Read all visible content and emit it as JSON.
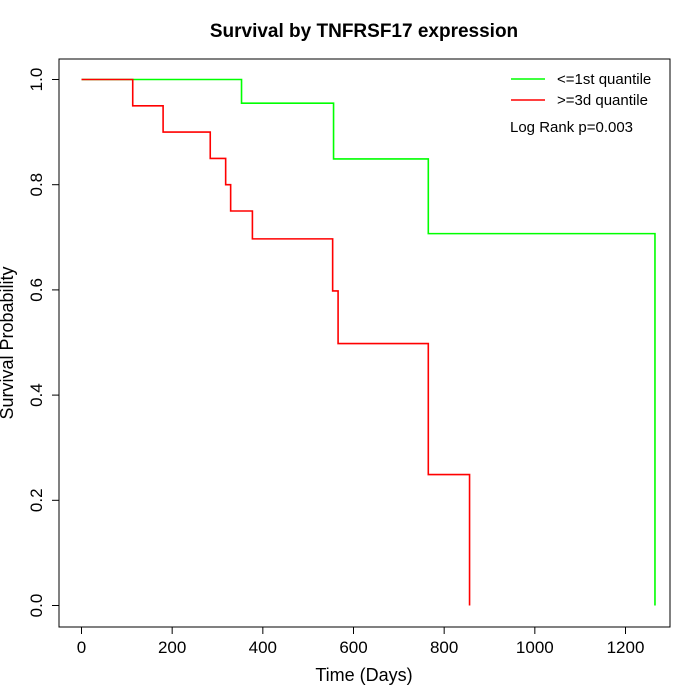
{
  "chart_data": {
    "type": "line",
    "subtype": "kaplan-meier step curve",
    "title": "Survival by TNFRSF17 expression",
    "xlabel": "Time (Days)",
    "ylabel": "Survival Probability",
    "xlim": [
      0,
      1265
    ],
    "ylim": [
      0,
      1.0
    ],
    "x_ticks": [
      0,
      200,
      400,
      600,
      800,
      1000,
      1200
    ],
    "x_tick_labels": [
      "0",
      "200",
      "400",
      "600",
      "800",
      "1000",
      "1200"
    ],
    "y_ticks": [
      0.0,
      0.2,
      0.4,
      0.6,
      0.8,
      1.0
    ],
    "y_tick_labels": [
      "0.0",
      "0.2",
      "0.4",
      "0.6",
      "0.8",
      "1.0"
    ],
    "grid": false,
    "legend_position": "top-right",
    "annotation": "Log Rank p=0.003",
    "series": [
      {
        "name": "<=1st quantile",
        "color": "#00ff00",
        "steps": [
          {
            "x": 0,
            "y": 1.0
          },
          {
            "x": 353,
            "y": 0.955
          },
          {
            "x": 556,
            "y": 0.849
          },
          {
            "x": 765,
            "y": 0.707
          },
          {
            "x": 1265,
            "y": 0.0
          }
        ]
      },
      {
        "name": ">=3d quantile",
        "color": "#ff0000",
        "steps": [
          {
            "x": 0,
            "y": 1.0
          },
          {
            "x": 113,
            "y": 0.95
          },
          {
            "x": 180,
            "y": 0.9
          },
          {
            "x": 284,
            "y": 0.85
          },
          {
            "x": 318,
            "y": 0.8
          },
          {
            "x": 329,
            "y": 0.75
          },
          {
            "x": 377,
            "y": 0.697
          },
          {
            "x": 554,
            "y": 0.598
          },
          {
            "x": 566,
            "y": 0.498
          },
          {
            "x": 765,
            "y": 0.249
          },
          {
            "x": 856,
            "y": 0.0
          }
        ]
      }
    ]
  }
}
